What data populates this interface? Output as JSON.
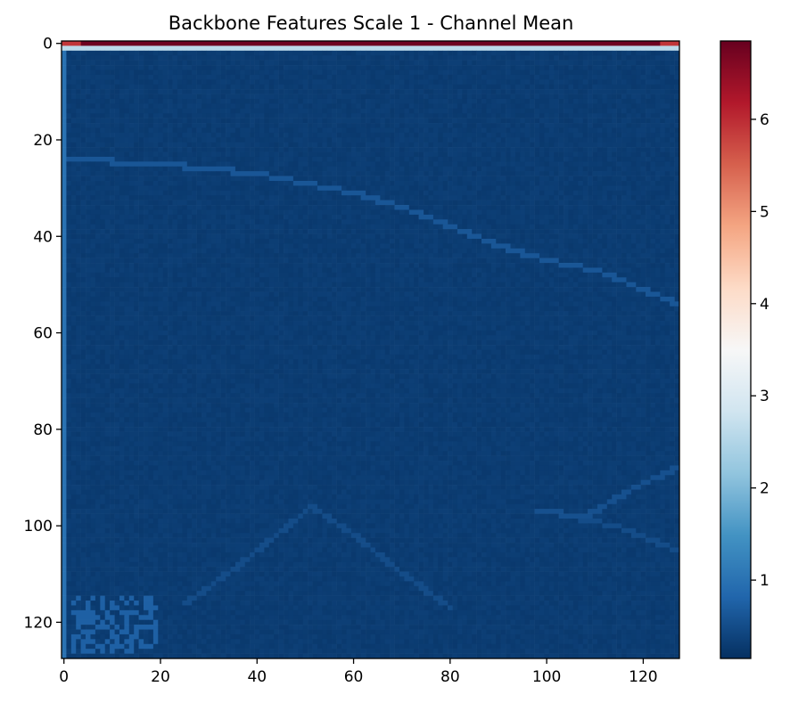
{
  "chart_data": {
    "type": "heatmap",
    "title": "Backbone Features Scale 1 - Channel Mean",
    "xlabel": "",
    "ylabel": "",
    "grid": false,
    "colormap": "RdBu_r",
    "x_range": [
      -0.5,
      127.5
    ],
    "y_range": [
      127.5,
      -0.5
    ],
    "x_ticks": [
      0,
      20,
      40,
      60,
      80,
      100,
      120
    ],
    "y_ticks": [
      0,
      20,
      40,
      60,
      80,
      100,
      120
    ],
    "colorbar": {
      "vmin": 0.15,
      "vmax": 6.85,
      "ticks": [
        1,
        2,
        3,
        4,
        5,
        6
      ],
      "placement": "right"
    },
    "background_value": 0.3,
    "top_edge_row": {
      "row": 0,
      "value_edges": 5.9,
      "value_center": 6.8
    },
    "second_row": {
      "row": 1,
      "value": 2.6
    },
    "left_edge_column": {
      "col": 0,
      "value": 1.0
    },
    "features": [
      {
        "name": "diagonal line",
        "value": 0.62,
        "points": [
          [
            0,
            24
          ],
          [
            20,
            25
          ],
          [
            40,
            27
          ],
          [
            60,
            31
          ],
          [
            70,
            34
          ],
          [
            80,
            38
          ],
          [
            90,
            42
          ],
          [
            100,
            45
          ],
          [
            110,
            47
          ],
          [
            127,
            54
          ]
        ]
      },
      {
        "name": "lower-right curve",
        "value": 0.55,
        "points": [
          [
            98,
            97
          ],
          [
            108,
            98
          ],
          [
            118,
            92
          ],
          [
            127,
            88
          ]
        ]
      },
      {
        "name": "lower-right curve 2",
        "value": 0.5,
        "points": [
          [
            104,
            98
          ],
          [
            114,
            100
          ],
          [
            124,
            104
          ],
          [
            127,
            105
          ]
        ]
      },
      {
        "name": "roof outline left",
        "value": 0.5,
        "points": [
          [
            25,
            116
          ],
          [
            35,
            109
          ],
          [
            45,
            101
          ],
          [
            51,
            96
          ]
        ]
      },
      {
        "name": "roof outline right",
        "value": 0.5,
        "points": [
          [
            51,
            96
          ],
          [
            60,
            102
          ],
          [
            70,
            110
          ],
          [
            80,
            117
          ]
        ]
      },
      {
        "name": "text spa",
        "value": 0.75,
        "region": [
          2,
          115,
          19,
          126
        ]
      }
    ]
  }
}
